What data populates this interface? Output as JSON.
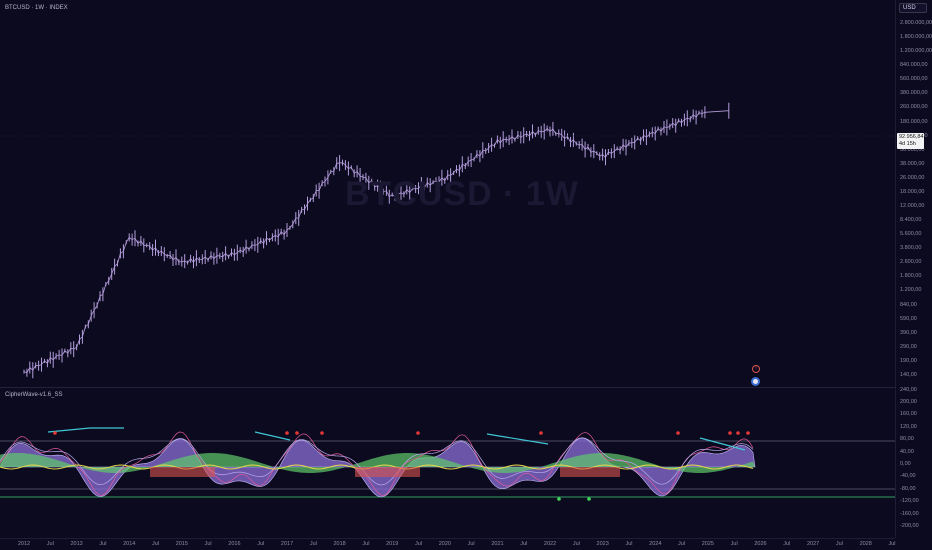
{
  "chart": {
    "symbol_title": "BTCUSD · 1W · INDEX",
    "watermark": "BTCUSD · 1W",
    "currency": "USD",
    "last_price": "92.956,84",
    "countdown": "4d 15h"
  },
  "indicator": {
    "title": "CipherWave-v1.6_SS"
  },
  "colors": {
    "background": "#0c0a1f",
    "candles": "#b39ddb",
    "wave_fill": "#8a6fd8",
    "money_flow_pos": "#5fc96b",
    "money_flow_neg": "#d9534f",
    "cyan_line": "#3fc6d6",
    "yellow_line": "#e6d84a",
    "red_dot": "#e53935",
    "green_dot": "#43d65b"
  },
  "chart_data": {
    "type": "line",
    "title": "BTCUSD · 1W · INDEX",
    "scale": "log",
    "x": [
      "2012",
      "2013",
      "2014",
      "2015",
      "2016",
      "2017",
      "2018",
      "2019",
      "2020",
      "2021",
      "2022",
      "2023",
      "2024",
      "2025"
    ],
    "series": [
      {
        "values": [
          5,
          13,
          800,
          315,
          430,
          1000,
          13800,
          3700,
          7200,
          29000,
          46000,
          16600,
          42000,
          93000
        ]
      }
    ],
    "ylabel": "",
    "price_axis_labels": [
      "2.800.000,00",
      "1.800.000,00",
      "1.200.000,00",
      "840.000,00",
      "560.000,00",
      "380.000,00",
      "260.000,00",
      "180.000,00",
      "120.000,00",
      "56.000,00",
      "38.000,00",
      "26.000,00",
      "18.000,00",
      "12.000,00",
      "8.400,00",
      "5.600,00",
      "3.800,00",
      "2.600,00",
      "1.800,00",
      "1.200,00",
      "840,00",
      "590,00",
      "390,00",
      "290,00",
      "190,00",
      "140,00",
      "240,00"
    ],
    "indicator_axis_labels": [
      "240,00",
      "200,00",
      "160,00",
      "120,00",
      "80,00",
      "40,00",
      "0,00",
      "-40,00",
      "-80,00",
      "-120,00",
      "-160,00",
      "-200,00"
    ],
    "time_labels": [
      "2012",
      "Jul",
      "2013",
      "Jul",
      "2014",
      "Jul",
      "2015",
      "Jul",
      "2016",
      "Jul",
      "2017",
      "Jul",
      "2018",
      "Jul",
      "2019",
      "Jul",
      "2020",
      "Jul",
      "2021",
      "Jul",
      "2022",
      "Jul",
      "2023",
      "Jul",
      "2024",
      "Jul",
      "2025",
      "Jul",
      "2026",
      "Jul",
      "2027",
      "Jul",
      "2028",
      "Jul"
    ]
  }
}
